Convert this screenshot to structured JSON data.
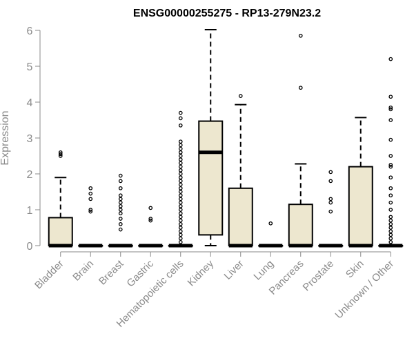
{
  "chart_data": {
    "type": "boxplot",
    "title": "ENSG00000255275 - RP13-279N23.2",
    "xlabel": "",
    "ylabel": "Expression",
    "ylim": [
      0,
      6
    ],
    "yticks": [
      0,
      1,
      2,
      3,
      4,
      5,
      6
    ],
    "box_fill": "#ede7cf",
    "categories": [
      "Bladder",
      "Brain",
      "Breast",
      "Gastric",
      "Hematopoietic cells",
      "Kidney",
      "Liver",
      "Lung",
      "Pancreas",
      "Prostate",
      "Skin",
      "Unknown / Other"
    ],
    "boxes": [
      {
        "name": "Bladder",
        "min": 0,
        "q1": 0,
        "median": 0,
        "q3": 0.78,
        "max": 1.9,
        "outliers": [
          2.5,
          2.55,
          2.6
        ]
      },
      {
        "name": "Brain",
        "min": 0,
        "q1": 0,
        "median": 0,
        "q3": 0,
        "max": 0,
        "outliers": [
          0.95,
          1.0,
          1.3,
          1.45,
          1.6
        ]
      },
      {
        "name": "Breast",
        "min": 0,
        "q1": 0,
        "median": 0,
        "q3": 0,
        "max": 0,
        "outliers": [
          0.45,
          0.6,
          0.75,
          0.9,
          1.0,
          1.1,
          1.2,
          1.3,
          1.4,
          1.6,
          1.8,
          1.95
        ]
      },
      {
        "name": "Gastric",
        "min": 0,
        "q1": 0,
        "median": 0,
        "q3": 0,
        "max": 0,
        "outliers": [
          0.7,
          0.75,
          1.05
        ]
      },
      {
        "name": "Hematopoietic cells",
        "min": 0,
        "q1": 0,
        "median": 0,
        "q3": 0,
        "max": 0,
        "outliers": [
          0.1,
          0.2,
          0.3,
          0.4,
          0.5,
          0.6,
          0.7,
          0.8,
          0.9,
          1.0,
          1.1,
          1.2,
          1.3,
          1.4,
          1.5,
          1.6,
          1.7,
          1.8,
          1.9,
          2.0,
          2.1,
          2.2,
          2.3,
          2.4,
          2.5,
          2.6,
          2.7,
          2.8,
          2.9,
          3.35,
          3.55,
          3.7
        ]
      },
      {
        "name": "Kidney",
        "min": 0,
        "q1": 0.3,
        "median": 2.6,
        "q3": 3.47,
        "max": 6.02,
        "outliers": []
      },
      {
        "name": "Liver",
        "min": 0,
        "q1": 0,
        "median": 0,
        "q3": 1.6,
        "max": 3.93,
        "outliers": [
          4.17
        ]
      },
      {
        "name": "Lung",
        "min": 0,
        "q1": 0,
        "median": 0,
        "q3": 0,
        "max": 0,
        "outliers": [
          0.62
        ]
      },
      {
        "name": "Pancreas",
        "min": 0,
        "q1": 0,
        "median": 0,
        "q3": 1.15,
        "max": 2.28,
        "outliers": [
          4.4,
          5.85
        ]
      },
      {
        "name": "Prostate",
        "min": 0,
        "q1": 0,
        "median": 0,
        "q3": 0,
        "max": 0,
        "outliers": [
          0.95,
          1.2,
          1.3,
          1.8,
          2.05
        ]
      },
      {
        "name": "Skin",
        "min": 0,
        "q1": 0,
        "median": 0,
        "q3": 2.2,
        "max": 3.57,
        "outliers": []
      },
      {
        "name": "Unknown / Other",
        "min": 0,
        "q1": 0,
        "median": 0,
        "q3": 0,
        "max": 0,
        "outliers": [
          0.1,
          0.2,
          0.3,
          0.4,
          0.5,
          0.6,
          0.7,
          0.8,
          1.0,
          1.2,
          1.4,
          1.6,
          1.9,
          2.2,
          2.25,
          2.5,
          2.95,
          3.5,
          3.8,
          3.85,
          4.15,
          5.2
        ]
      }
    ]
  }
}
